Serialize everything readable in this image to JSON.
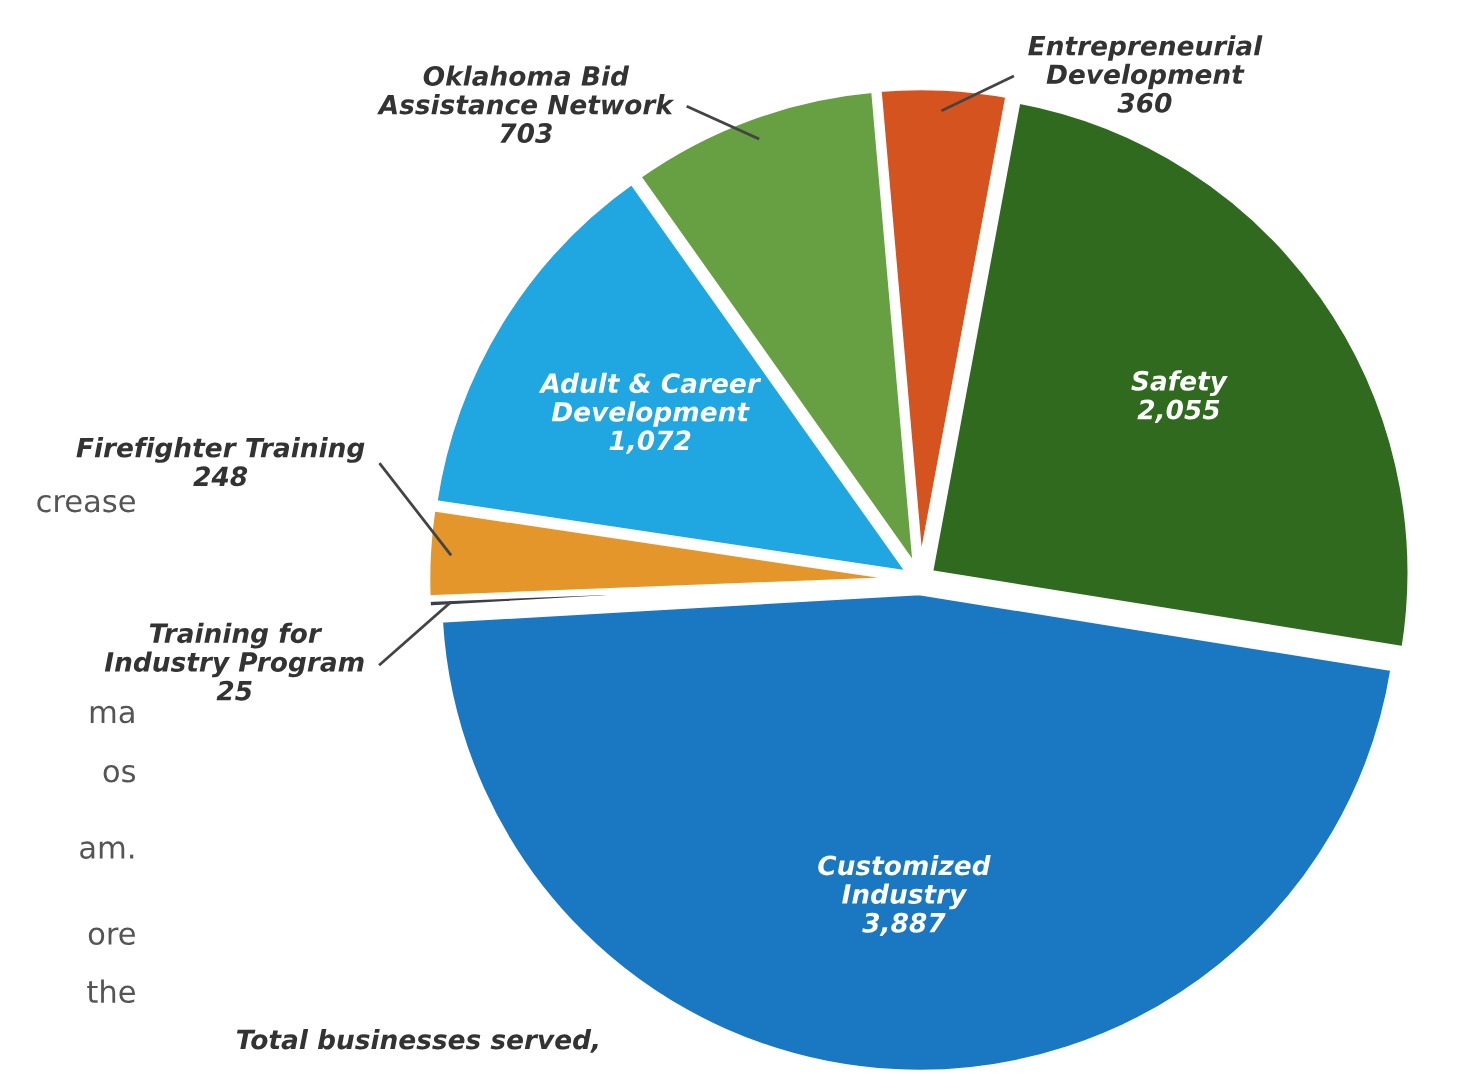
{
  "chart_data": {
    "type": "pie",
    "categories": [
      "Entrepreneurial\nDevelopment",
      "Safety",
      "Customized\nIndustry",
      "Training for\nIndustry Program",
      "Firefighter Training",
      "Adult & Career\nDevelopment",
      "Oklahoma Bid\nAssistance Network"
    ],
    "values": [
      360,
      2055,
      3887,
      25,
      248,
      1072,
      703
    ],
    "value_labels": [
      "360",
      "2,055",
      "3,887",
      "25",
      "248",
      "1,072",
      "703"
    ],
    "colors": [
      "#d4531f",
      "#2f6a1e",
      "#1a78c2",
      "#3b3f4a",
      "#e5962a",
      "#20a6e0",
      "#67a043"
    ],
    "annotations": [
      "Total businesses served,",
      "crease",
      "ma",
      "os",
      "am.",
      "ore",
      "the"
    ]
  }
}
